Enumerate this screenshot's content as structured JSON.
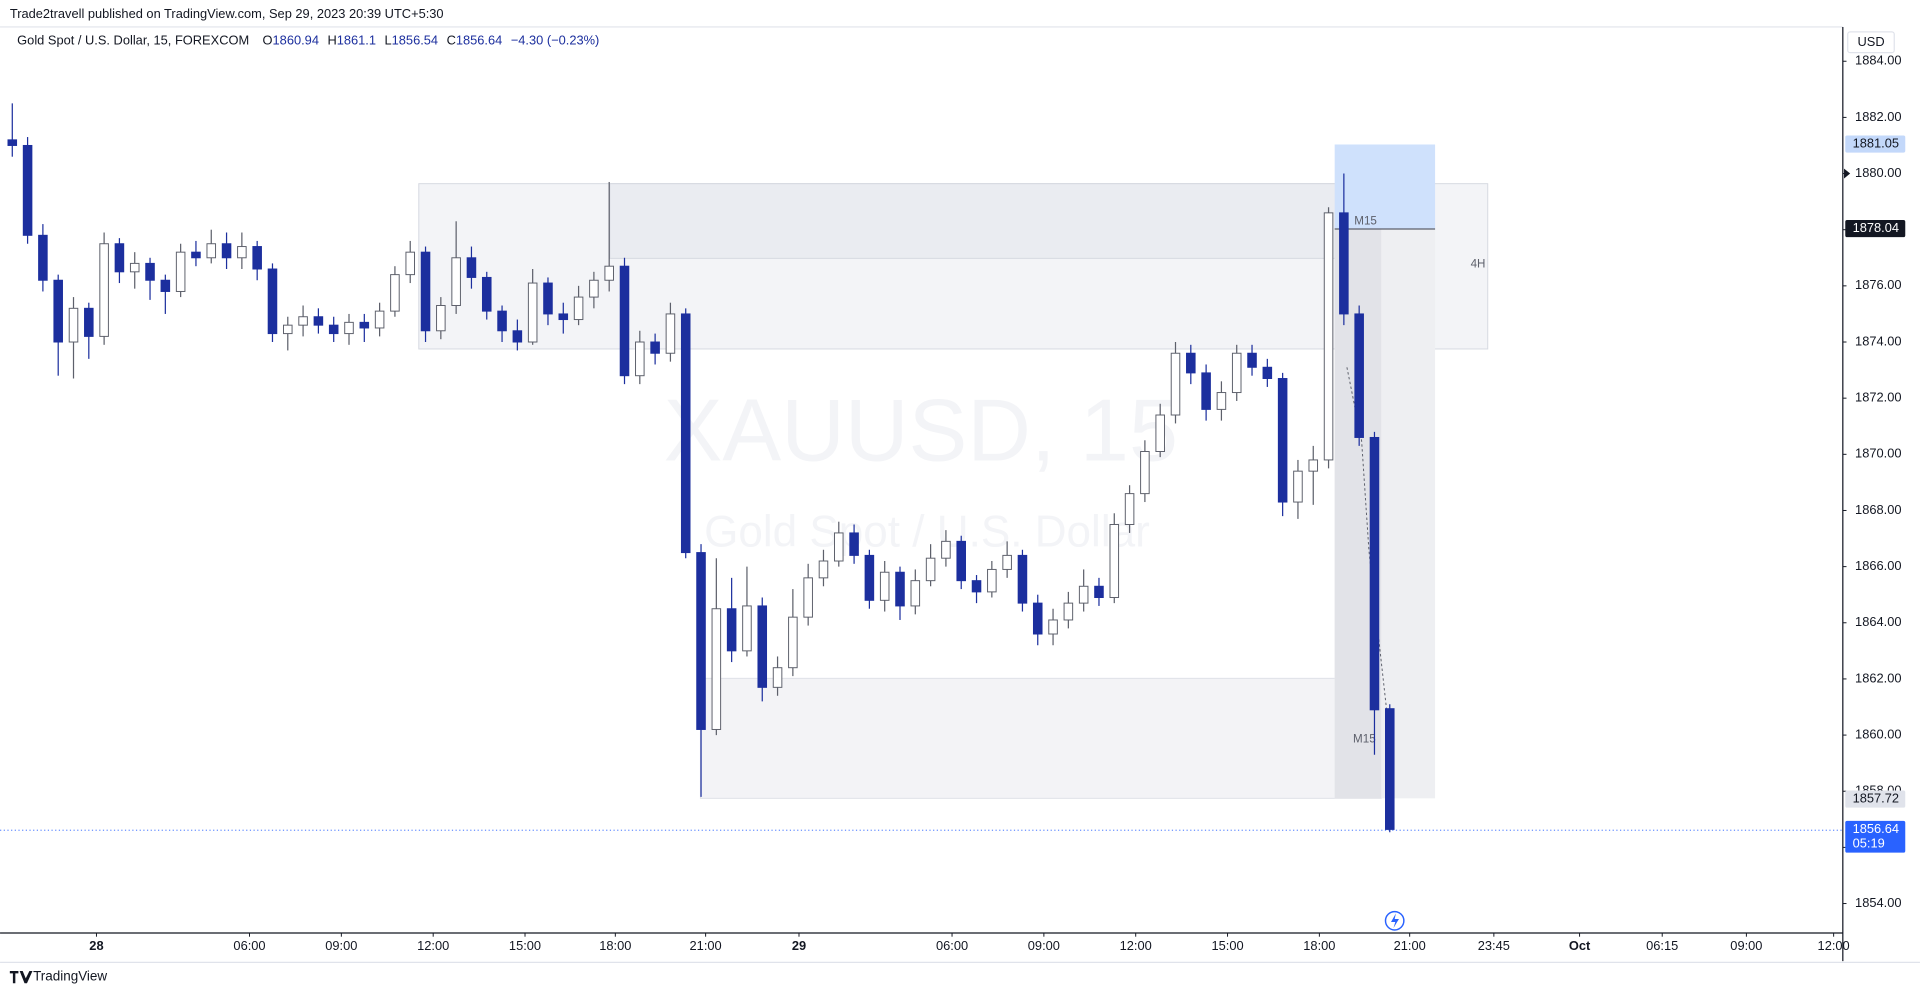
{
  "header": {
    "published": "Trade2travell published on TradingView.com, Sep 29, 2023 20:39 UTC+5:30",
    "brand": "TradingView"
  },
  "chart_data": {
    "type": "candlestick",
    "title": "Gold Spot / U.S. Dollar, 15, FOREXCOM",
    "legend": {
      "open_label": "O",
      "open": 1860.94,
      "high_label": "H",
      "high": 1861.1,
      "low_label": "L",
      "low": 1856.54,
      "close_label": "C",
      "close": 1856.64,
      "change": "−4.30 (−0.23%)"
    },
    "watermark": {
      "symbol": "XAUUSD, 15",
      "name": "Gold Spot / U.S. Dollar"
    },
    "currency": "USD",
    "up_color": "#ffffff",
    "up_border": "#5d606b",
    "down_color": "#1c2f9e",
    "ohlc": [
      [
        1881.2,
        1882.5,
        1880.6,
        1881.0
      ],
      [
        1881.0,
        1881.3,
        1877.5,
        1877.8
      ],
      [
        1877.8,
        1878.2,
        1875.8,
        1876.2
      ],
      [
        1876.2,
        1876.4,
        1872.8,
        1874.0
      ],
      [
        1874.0,
        1875.6,
        1872.7,
        1875.2
      ],
      [
        1875.2,
        1875.4,
        1873.4,
        1874.2
      ],
      [
        1874.2,
        1877.9,
        1873.9,
        1877.5
      ],
      [
        1877.5,
        1877.7,
        1876.1,
        1876.5
      ],
      [
        1876.5,
        1877.2,
        1875.9,
        1876.8
      ],
      [
        1876.8,
        1877.0,
        1875.5,
        1876.2
      ],
      [
        1876.2,
        1876.4,
        1875.0,
        1875.8
      ],
      [
        1875.8,
        1877.5,
        1875.6,
        1877.2
      ],
      [
        1877.2,
        1877.6,
        1876.7,
        1877.0
      ],
      [
        1877.0,
        1878.0,
        1876.8,
        1877.5
      ],
      [
        1877.5,
        1877.9,
        1876.6,
        1877.0
      ],
      [
        1877.0,
        1877.9,
        1876.6,
        1877.4
      ],
      [
        1877.4,
        1877.6,
        1876.2,
        1876.6
      ],
      [
        1876.6,
        1876.8,
        1874.0,
        1874.3
      ],
      [
        1874.3,
        1874.9,
        1873.7,
        1874.6
      ],
      [
        1874.6,
        1875.3,
        1874.2,
        1874.9
      ],
      [
        1874.9,
        1875.2,
        1874.3,
        1874.6
      ],
      [
        1874.6,
        1874.9,
        1874.0,
        1874.3
      ],
      [
        1874.3,
        1875.0,
        1873.9,
        1874.7
      ],
      [
        1874.7,
        1875.0,
        1874.0,
        1874.5
      ],
      [
        1874.5,
        1875.4,
        1874.2,
        1875.1
      ],
      [
        1875.1,
        1876.7,
        1874.9,
        1876.4
      ],
      [
        1876.4,
        1877.6,
        1876.1,
        1877.2
      ],
      [
        1877.2,
        1877.4,
        1874.0,
        1874.4
      ],
      [
        1874.4,
        1875.6,
        1874.1,
        1875.3
      ],
      [
        1875.3,
        1878.3,
        1875.0,
        1877.0
      ],
      [
        1877.0,
        1877.4,
        1875.9,
        1876.3
      ],
      [
        1876.3,
        1876.5,
        1874.8,
        1875.1
      ],
      [
        1875.1,
        1875.3,
        1874.0,
        1874.4
      ],
      [
        1874.4,
        1874.8,
        1873.7,
        1874.0
      ],
      [
        1874.0,
        1876.6,
        1873.9,
        1876.1
      ],
      [
        1876.1,
        1876.3,
        1874.6,
        1875.0
      ],
      [
        1875.0,
        1875.4,
        1874.3,
        1874.8
      ],
      [
        1874.8,
        1876.0,
        1874.6,
        1875.6
      ],
      [
        1875.6,
        1876.5,
        1875.2,
        1876.2
      ],
      [
        1876.2,
        1879.7,
        1875.8,
        1876.7
      ],
      [
        1876.7,
        1877.0,
        1872.5,
        1872.8
      ],
      [
        1872.8,
        1874.4,
        1872.5,
        1874.0
      ],
      [
        1874.0,
        1874.3,
        1873.2,
        1873.6
      ],
      [
        1873.6,
        1875.4,
        1873.3,
        1875.0
      ],
      [
        1875.0,
        1875.2,
        1866.3,
        1866.5
      ],
      [
        1866.5,
        1866.8,
        1857.8,
        1860.2
      ],
      [
        1860.2,
        1866.3,
        1860.0,
        1864.5
      ],
      [
        1864.5,
        1865.6,
        1862.6,
        1863.0
      ],
      [
        1863.0,
        1866.0,
        1862.8,
        1864.6
      ],
      [
        1864.6,
        1864.9,
        1861.2,
        1861.7
      ],
      [
        1861.7,
        1862.8,
        1861.4,
        1862.4
      ],
      [
        1862.4,
        1865.2,
        1862.1,
        1864.2
      ],
      [
        1864.2,
        1866.1,
        1863.9,
        1865.6
      ],
      [
        1865.6,
        1866.6,
        1865.3,
        1866.2
      ],
      [
        1866.2,
        1867.6,
        1866.0,
        1867.2
      ],
      [
        1867.2,
        1867.5,
        1866.1,
        1866.4
      ],
      [
        1866.4,
        1866.6,
        1864.5,
        1864.8
      ],
      [
        1864.8,
        1866.2,
        1864.4,
        1865.8
      ],
      [
        1865.8,
        1866.0,
        1864.1,
        1864.6
      ],
      [
        1864.6,
        1865.9,
        1864.3,
        1865.5
      ],
      [
        1865.5,
        1866.8,
        1865.3,
        1866.3
      ],
      [
        1866.3,
        1867.3,
        1866.0,
        1866.9
      ],
      [
        1866.9,
        1867.1,
        1865.2,
        1865.5
      ],
      [
        1865.5,
        1865.7,
        1864.7,
        1865.1
      ],
      [
        1865.1,
        1866.2,
        1864.9,
        1865.9
      ],
      [
        1865.9,
        1866.9,
        1865.6,
        1866.4
      ],
      [
        1866.4,
        1866.6,
        1864.4,
        1864.7
      ],
      [
        1864.7,
        1865.0,
        1863.2,
        1863.6
      ],
      [
        1863.6,
        1864.5,
        1863.2,
        1864.1
      ],
      [
        1864.1,
        1865.1,
        1863.8,
        1864.7
      ],
      [
        1864.7,
        1865.9,
        1864.4,
        1865.3
      ],
      [
        1865.3,
        1865.6,
        1864.6,
        1864.9
      ],
      [
        1864.9,
        1867.9,
        1864.7,
        1867.5
      ],
      [
        1867.5,
        1868.9,
        1867.2,
        1868.6
      ],
      [
        1868.6,
        1870.5,
        1868.3,
        1870.1
      ],
      [
        1870.1,
        1871.8,
        1869.9,
        1871.4
      ],
      [
        1871.4,
        1874.0,
        1871.1,
        1873.6
      ],
      [
        1873.6,
        1873.9,
        1872.5,
        1872.9
      ],
      [
        1872.9,
        1873.2,
        1871.2,
        1871.6
      ],
      [
        1871.6,
        1872.6,
        1871.2,
        1872.2
      ],
      [
        1872.2,
        1873.9,
        1871.9,
        1873.6
      ],
      [
        1873.6,
        1873.9,
        1872.8,
        1873.1
      ],
      [
        1873.1,
        1873.4,
        1872.4,
        1872.7
      ],
      [
        1872.7,
        1872.9,
        1867.8,
        1868.3
      ],
      [
        1868.3,
        1869.8,
        1867.7,
        1869.4
      ],
      [
        1869.4,
        1870.3,
        1868.2,
        1869.8
      ],
      [
        1869.8,
        1878.8,
        1869.5,
        1878.6
      ],
      [
        1878.6,
        1880.0,
        1874.6,
        1875.0
      ],
      [
        1875.0,
        1875.3,
        1870.3,
        1870.6
      ],
      [
        1870.6,
        1870.8,
        1859.3,
        1860.9
      ],
      [
        1860.94,
        1861.1,
        1856.54,
        1856.64
      ]
    ],
    "xlim": [
      -0.16,
      119.6
    ],
    "xticks": [
      {
        "value": 5.5,
        "label": "28"
      },
      {
        "value": 15.5,
        "label": "06:00"
      },
      {
        "value": 21.5,
        "label": "09:00"
      },
      {
        "value": 27.5,
        "label": "12:00"
      },
      {
        "value": 33.5,
        "label": "15:00"
      },
      {
        "value": 39.4,
        "label": "18:00"
      },
      {
        "value": 45.3,
        "label": "21:00"
      },
      {
        "value": 51.4,
        "label": "29"
      },
      {
        "value": 61.4,
        "label": "06:00"
      },
      {
        "value": 67.4,
        "label": "09:00"
      },
      {
        "value": 73.4,
        "label": "12:00"
      },
      {
        "value": 79.4,
        "label": "15:00"
      },
      {
        "value": 85.4,
        "label": "18:00"
      },
      {
        "value": 91.3,
        "label": "21:00"
      },
      {
        "value": 96.8,
        "label": "23:45"
      },
      {
        "value": 102.4,
        "label": "Oct"
      },
      {
        "value": 107.8,
        "label": "06:15"
      },
      {
        "value": 113.3,
        "label": "09:00"
      },
      {
        "value": 119.0,
        "label": "12:00"
      }
    ],
    "ylim": [
      1852.95,
      1885.2
    ],
    "yticks": [
      {
        "value": 1854,
        "label": "1854.00"
      },
      {
        "value": 1856,
        "label": "1856.00"
      },
      {
        "value": 1858,
        "label": "1858.00"
      },
      {
        "value": 1860,
        "label": "1860.00"
      },
      {
        "value": 1862,
        "label": "1862.00"
      },
      {
        "value": 1864,
        "label": "1864.00"
      },
      {
        "value": 1866,
        "label": "1866.00"
      },
      {
        "value": 1868,
        "label": "1868.00"
      },
      {
        "value": 1870,
        "label": "1870.00"
      },
      {
        "value": 1872,
        "label": "1872.00"
      },
      {
        "value": 1874,
        "label": "1874.00"
      },
      {
        "value": 1876,
        "label": "1876.00"
      },
      {
        "value": 1878,
        "label": "1878.00"
      },
      {
        "value": 1880,
        "label": "1880.00"
      },
      {
        "value": 1882,
        "label": "1882.00"
      },
      {
        "value": 1884,
        "label": "1884.00"
      }
    ],
    "price_markers": [
      1881.05,
      1878.04,
      1857.72,
      1856.64
    ],
    "countdown": "05:19",
    "annotations": [
      "M15",
      "4H",
      "M15"
    ]
  }
}
